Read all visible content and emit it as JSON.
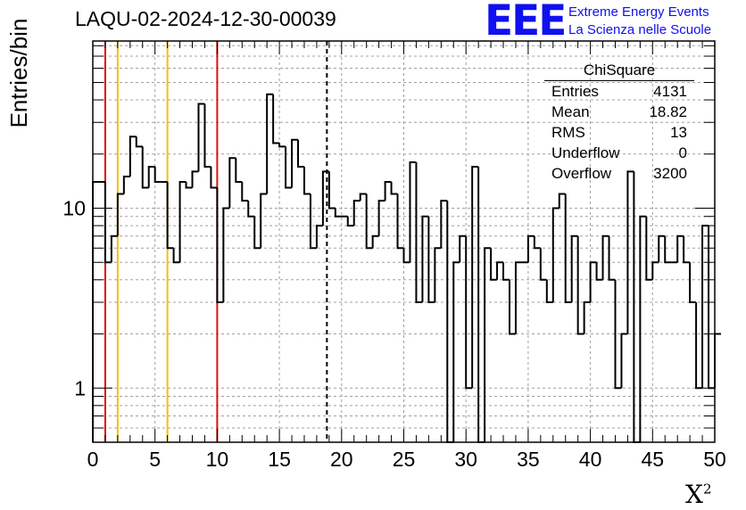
{
  "header": {
    "run_title": "LAQU-02-2024-12-30-00039",
    "logo_text": "EEE",
    "logo_line1": "Extreme Energy Events",
    "logo_line2": "La Scienza nelle Scuole"
  },
  "stats_box": {
    "title": "ChiSquare",
    "rows": [
      {
        "label": "Entries",
        "value": "4131"
      },
      {
        "label": "Mean",
        "value": "18.82"
      },
      {
        "label": "RMS",
        "value": "13"
      },
      {
        "label": "Underflow",
        "value": "0"
      },
      {
        "label": "Overflow",
        "value": "3200"
      }
    ]
  },
  "chart_data": {
    "type": "histogram",
    "title": "LAQU-02-2024-12-30-00039",
    "xlabel": "X",
    "xlabel_sup": "2",
    "ylabel": "Entries/bin",
    "xlim": [
      0,
      50
    ],
    "ylim": [
      0.5,
      85
    ],
    "yscale": "log",
    "grid": true,
    "bin_width": 0.5,
    "x_ticks": [
      0,
      5,
      10,
      15,
      20,
      25,
      30,
      35,
      40,
      45,
      50
    ],
    "x_tick_labels": [
      "0",
      "5",
      "10",
      "15",
      "20",
      "25",
      "30",
      "35",
      "40",
      "45",
      "50"
    ],
    "y_ticks": [
      1,
      10
    ],
    "y_tick_labels": [
      "1",
      "10"
    ],
    "values": [
      14,
      14,
      5,
      7,
      12,
      15,
      25,
      22,
      13,
      17,
      14,
      14,
      6,
      5,
      14,
      13,
      16,
      38,
      17,
      13,
      3,
      10,
      19,
      14,
      11,
      9,
      6,
      12,
      43,
      23,
      22,
      13,
      24,
      17,
      12,
      6,
      8,
      16,
      10,
      9,
      9,
      8,
      11,
      12,
      6,
      7,
      11,
      14,
      12,
      6,
      5,
      18,
      3,
      9,
      3,
      6,
      11,
      0,
      5,
      7,
      1,
      17,
      0,
      6,
      4,
      5,
      4,
      2,
      5,
      5,
      7,
      6,
      4,
      3,
      10,
      12,
      3,
      7,
      2,
      3,
      5,
      4,
      7,
      4,
      1,
      2,
      16,
      0,
      9,
      4,
      5,
      7,
      5,
      5,
      7,
      5,
      3,
      1,
      8,
      1,
      2
    ],
    "vlines": [
      {
        "x": 1,
        "color": "#dd1111",
        "style": "solid"
      },
      {
        "x": 10,
        "color": "#dd1111",
        "style": "solid"
      },
      {
        "x": 2,
        "color": "#f2c010",
        "style": "solid"
      },
      {
        "x": 6,
        "color": "#f2c010",
        "style": "solid"
      },
      {
        "x": 18.82,
        "color": "#000000",
        "style": "dashed"
      }
    ]
  }
}
